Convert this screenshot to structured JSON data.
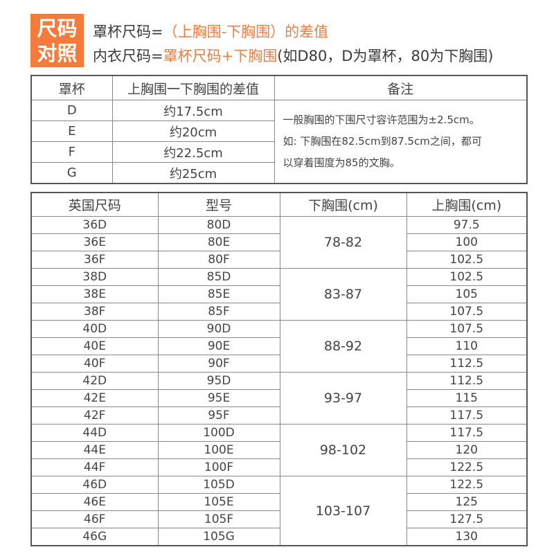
{
  "badge": {
    "line1": "尺码",
    "line2": "对照"
  },
  "formula1": {
    "prefix": "罩杯尺码=",
    "highlight": "（上胸围-下胸围）的差值"
  },
  "formula2": {
    "prefix": "内衣尺码=",
    "highlight": "罩杯尺码+下胸围",
    "suffix": "(如D80，D为罩杯，80为下胸围)"
  },
  "accent_color": "#f47b3b",
  "cup_table": {
    "headers": [
      "罩杯",
      "上胸围一下胸围的差值",
      "备注"
    ],
    "rows": [
      [
        "D",
        "约17.5cm"
      ],
      [
        "E",
        "约20cm"
      ],
      [
        "F",
        "约22.5cm"
      ],
      [
        "G",
        "约25cm"
      ]
    ],
    "note": [
      "一般胸围的下围尺寸容许范围为±2.5cm。",
      "如: 下胸围在82.5cm到87.5cm之间，都可",
      "以穿着围度为85的文胸。"
    ]
  },
  "size_table": {
    "headers": [
      "英国尺码",
      "型号",
      "下胸围(cm)",
      "上胸围(cm)"
    ],
    "rows": [
      [
        "36D",
        "80D",
        "78-82",
        "97.5"
      ],
      [
        "36E",
        "80E",
        "",
        "100"
      ],
      [
        "36F",
        "80F",
        "",
        "102.5"
      ],
      [
        "38D",
        "85D",
        "83-87",
        "102.5"
      ],
      [
        "38E",
        "85E",
        "",
        "105"
      ],
      [
        "38F",
        "85F",
        "",
        "107.5"
      ],
      [
        "40D",
        "90D",
        "88-92",
        "107.5"
      ],
      [
        "40E",
        "90E",
        "",
        "110"
      ],
      [
        "40F",
        "90F",
        "",
        "112.5"
      ],
      [
        "42D",
        "95D",
        "93-97",
        "112.5"
      ],
      [
        "42E",
        "95E",
        "",
        "115"
      ],
      [
        "42F",
        "95F",
        "",
        "117.5"
      ],
      [
        "44D",
        "100D",
        "98-102",
        "117.5"
      ],
      [
        "44E",
        "100E",
        "",
        "120"
      ],
      [
        "44F",
        "100F",
        "",
        "122.5"
      ],
      [
        "46D",
        "105D",
        "103-107",
        "122.5"
      ],
      [
        "46E",
        "105E",
        "",
        "125"
      ],
      [
        "46F",
        "105F",
        "",
        "127.5"
      ],
      [
        "46G",
        "105G",
        "",
        "130"
      ]
    ]
  }
}
